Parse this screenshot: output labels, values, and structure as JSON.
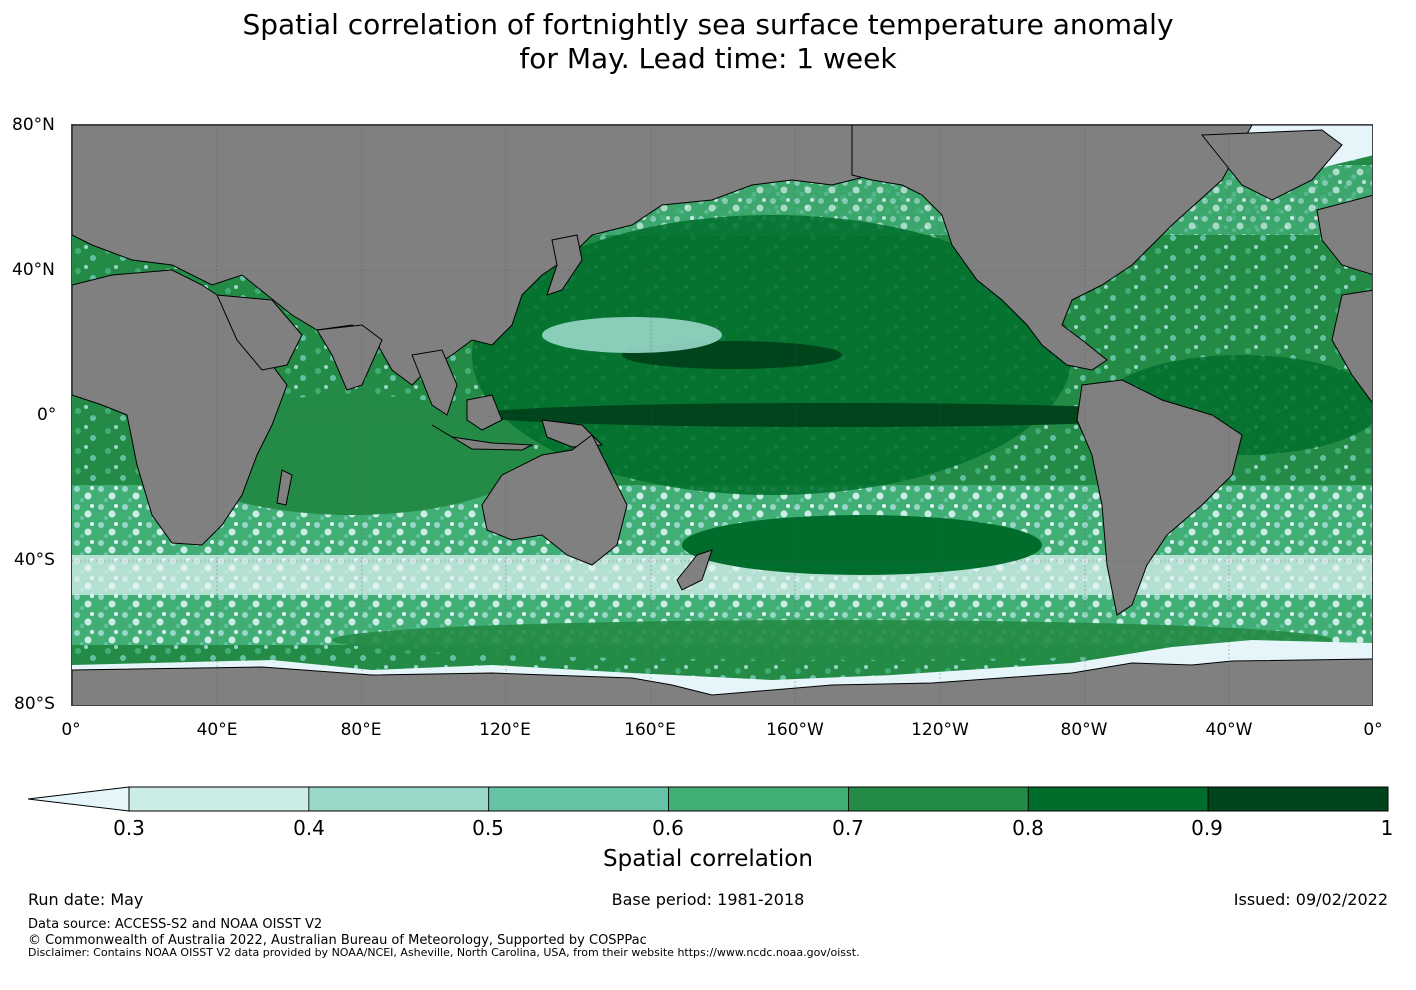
{
  "title_line1": "Spatial correlation of fortnightly sea surface temperature anomaly",
  "title_line2": "for May. Lead time: 1 week",
  "map": {
    "lat_labels": [
      "80°N",
      "40°N",
      "0°",
      "40°S",
      "80°S"
    ],
    "lon_labels": [
      "0°",
      "40°E",
      "80°E",
      "120°E",
      "160°E",
      "160°W",
      "120°W",
      "80°W",
      "40°W",
      "0°"
    ],
    "land_color": "#808080",
    "ice_color": "#e5f5f9"
  },
  "colorbar": {
    "label": "Spatial correlation",
    "ticks": [
      "0.3",
      "0.4",
      "0.5",
      "0.6",
      "0.7",
      "0.8",
      "0.9",
      "1"
    ],
    "colors": [
      "#ccece6",
      "#99d8c9",
      "#66c2a4",
      "#41ae76",
      "#238b45",
      "#006d2c",
      "#00441b"
    ],
    "extend_color": "#e5f5f9"
  },
  "footer": {
    "run_date": "Run date: May",
    "base_period": "Base period: 1981-2018",
    "issued": "Issued: 09/02/2022",
    "data_source": "Data source: ACCESS-S2 and NOAA OISST V2",
    "copyright": "© Commonwealth of Australia 2022, Australian Bureau of Meteorology, Supported by COSPPac",
    "disclaimer": "Disclaimer: Contains NOAA OISST V2 data provided by NOAA/NCEI, Asheville, North Carolina, USA, from their website https://www.ncdc.noaa.gov/oisst."
  }
}
